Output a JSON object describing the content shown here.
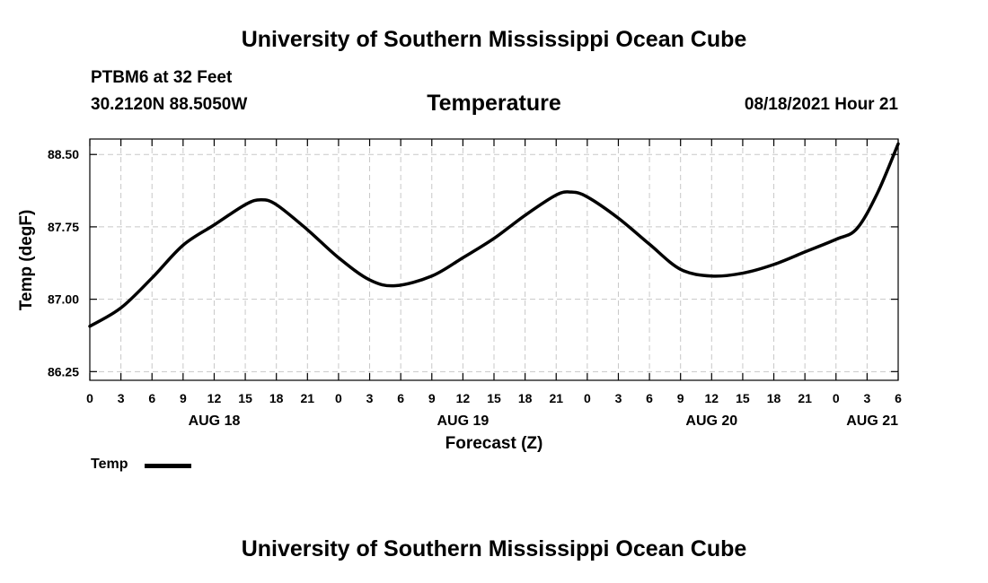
{
  "header": {
    "org_title": "University of Southern Mississippi Ocean Cube",
    "station": "PTBM6 at 32 Feet",
    "coords": "30.2120N  88.5050W",
    "chart_title": "Temperature",
    "timestamp": "08/18/2021 Hour 21"
  },
  "footer": {
    "org_title": "University of Southern Mississippi Ocean Cube"
  },
  "legend": {
    "label": "Temp",
    "color": "#000000"
  },
  "chart_data": {
    "type": "line",
    "title": "Temperature",
    "xlabel": "Forecast (Z)",
    "ylabel": "Temp (degF)",
    "xlim": [
      0,
      78
    ],
    "ylim": [
      86.16,
      88.66
    ],
    "y_ticks": [
      86.25,
      87.0,
      87.75,
      88.5
    ],
    "y_tick_labels": [
      "86.25",
      "87.00",
      "87.75",
      "88.50"
    ],
    "x_ticks": [
      0,
      3,
      6,
      9,
      12,
      15,
      18,
      21,
      24,
      27,
      30,
      33,
      36,
      39,
      42,
      45,
      48,
      51,
      54,
      57,
      60,
      63,
      66,
      69,
      72,
      75,
      78
    ],
    "x_tick_labels": [
      "0",
      "3",
      "6",
      "9",
      "12",
      "15",
      "18",
      "21",
      "0",
      "3",
      "6",
      "9",
      "12",
      "15",
      "18",
      "21",
      "0",
      "3",
      "6",
      "9",
      "12",
      "15",
      "18",
      "21",
      "0",
      "3",
      "6"
    ],
    "day_labels": [
      {
        "hour": 12,
        "label": "AUG 18"
      },
      {
        "hour": 36,
        "label": "AUG 19"
      },
      {
        "hour": 60,
        "label": "AUG 20"
      },
      {
        "hour": 75.5,
        "label": "AUG 21"
      }
    ],
    "grid": true,
    "series": [
      {
        "name": "Temp",
        "color": "#000000",
        "x": [
          0,
          3,
          6,
          9,
          12,
          15,
          16.5,
          18,
          21,
          24,
          27,
          29.5,
          33,
          36,
          39,
          42,
          45,
          46.5,
          48,
          51,
          54,
          57,
          60,
          63,
          66,
          69,
          72,
          74,
          76,
          78
        ],
        "y": [
          86.72,
          86.91,
          87.22,
          87.56,
          87.77,
          87.98,
          88.03,
          87.98,
          87.72,
          87.43,
          87.2,
          87.14,
          87.24,
          87.43,
          87.63,
          87.87,
          88.08,
          88.11,
          88.06,
          87.84,
          87.57,
          87.31,
          87.24,
          87.27,
          87.36,
          87.49,
          87.62,
          87.73,
          88.1,
          88.61
        ]
      }
    ]
  }
}
